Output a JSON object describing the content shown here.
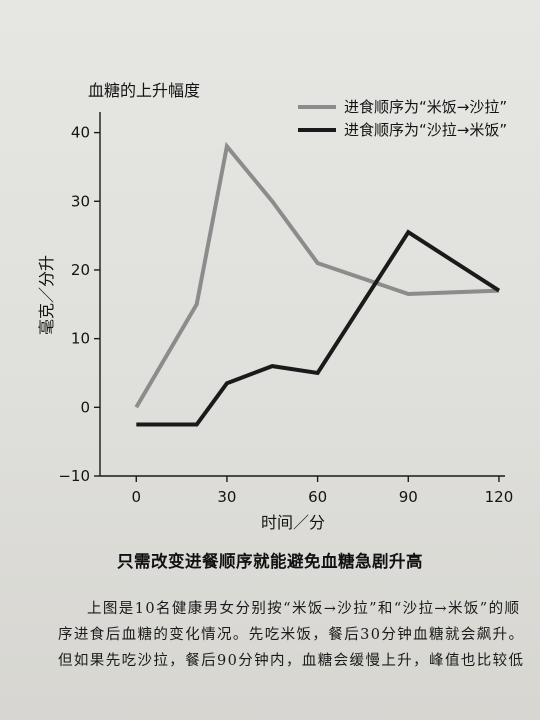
{
  "chart_data": {
    "type": "line",
    "ylabel_top": "血糖的上升幅度",
    "ylabel": "毫克／分升",
    "xlabel": "时间／分",
    "x_ticks": [
      0,
      30,
      60,
      90,
      120
    ],
    "x_tick_labels": [
      "0",
      "30",
      "60",
      "90",
      "120"
    ],
    "y_ticks": [
      40,
      30,
      20,
      10,
      0,
      -10
    ],
    "y_tick_labels": [
      "40",
      "30",
      "20",
      "10",
      "0",
      "−10"
    ],
    "xlim": [
      -12,
      122
    ],
    "ylim": [
      -10,
      43
    ],
    "grid": false,
    "legend_position": "top-right",
    "series": [
      {
        "name": "进食顺序为“米饭→沙拉”",
        "color": "#8c8c8c",
        "x": [
          0,
          20,
          30,
          45,
          60,
          90,
          120
        ],
        "y": [
          0,
          15,
          38,
          30,
          21,
          16.5,
          17
        ]
      },
      {
        "name": "进食顺序为“沙拉→米饭”",
        "color": "#1a1a1a",
        "x": [
          0,
          20,
          30,
          45,
          60,
          90,
          120
        ],
        "y": [
          -2.5,
          -2.5,
          3.5,
          6,
          5,
          25.5,
          17
        ]
      }
    ]
  },
  "caption": "只需改变进餐顺序就能避免血糖急剧升高",
  "description": "上图是10名健康男女分别按“米饭→沙拉”和“沙拉→米饭”的顺序进食后血糖的变化情况。先吃米饭，餐后30分钟血糖就会飙升。但如果先吃沙拉，餐后90分钟内，血糖会缓慢上升，峰值也比较低"
}
